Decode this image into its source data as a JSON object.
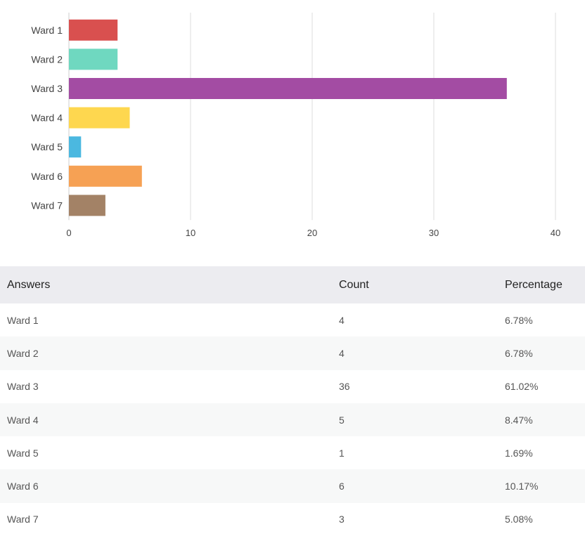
{
  "chart_data": {
    "type": "bar",
    "orientation": "horizontal",
    "categories": [
      "Ward 1",
      "Ward 2",
      "Ward 3",
      "Ward 4",
      "Ward 5",
      "Ward 6",
      "Ward 7"
    ],
    "values": [
      4,
      4,
      36,
      5,
      1,
      6,
      3
    ],
    "colors": [
      "#d9504f",
      "#6fd8c0",
      "#a34ca3",
      "#fed74f",
      "#4bb8e0",
      "#f6a154",
      "#a38266"
    ],
    "xlim": [
      0,
      40
    ],
    "xticks": [
      0,
      10,
      20,
      30,
      40
    ],
    "title": "",
    "xlabel": "",
    "ylabel": "",
    "grid": true
  },
  "table": {
    "headers": {
      "answers": "Answers",
      "count": "Count",
      "percentage": "Percentage"
    },
    "rows": [
      {
        "answer": "Ward 1",
        "count": "4",
        "percentage": "6.78%"
      },
      {
        "answer": "Ward 2",
        "count": "4",
        "percentage": "6.78%"
      },
      {
        "answer": "Ward 3",
        "count": "36",
        "percentage": "61.02%"
      },
      {
        "answer": "Ward 4",
        "count": "5",
        "percentage": "8.47%"
      },
      {
        "answer": "Ward 5",
        "count": "1",
        "percentage": "1.69%"
      },
      {
        "answer": "Ward 6",
        "count": "6",
        "percentage": "10.17%"
      },
      {
        "answer": "Ward 7",
        "count": "3",
        "percentage": "5.08%"
      }
    ]
  }
}
